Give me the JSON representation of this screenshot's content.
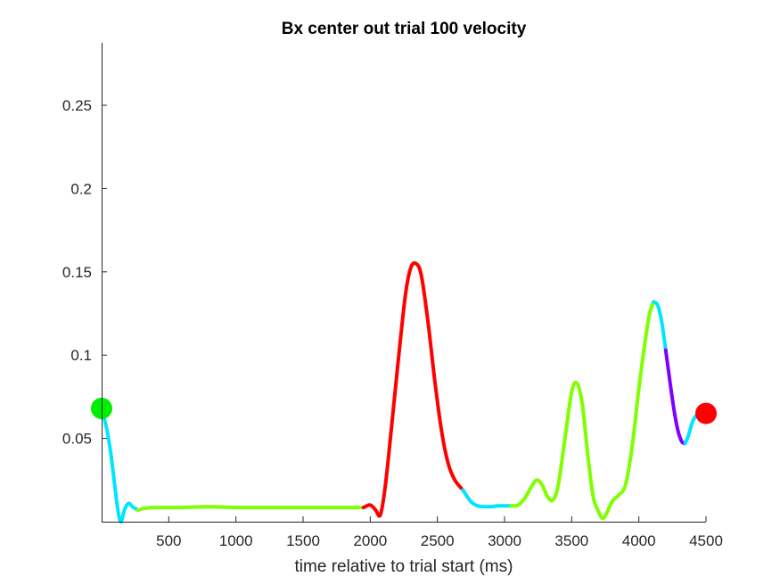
{
  "chart_data": {
    "type": "line",
    "title": "Bx  center out trial 100 velocity",
    "xlabel": "time relative to trial start (ms)",
    "ylabel": "",
    "xlim": [
      0,
      4500
    ],
    "ylim": [
      0,
      0.2875
    ],
    "x_ticks": [
      500,
      1000,
      1500,
      2000,
      2500,
      3000,
      3500,
      4000,
      4500
    ],
    "y_ticks": [
      0.05,
      0.1,
      0.15,
      0.2,
      0.25
    ],
    "x_tick_labels": [
      "500",
      "1000",
      "1500",
      "2000",
      "2500",
      "3000",
      "3500",
      "4000",
      "4500"
    ],
    "y_tick_labels": [
      "0.05",
      "0.1",
      "0.15",
      "0.2",
      "0.25"
    ],
    "grid": false,
    "box": false,
    "series": [
      {
        "color": "#00e5ff",
        "points": [
          [
            0,
            0.068
          ],
          [
            40,
            0.055
          ],
          [
            70,
            0.04
          ],
          [
            100,
            0.02
          ],
          [
            125,
            0.005
          ],
          [
            145,
            0.0
          ],
          [
            170,
            0.007
          ],
          [
            200,
            0.011
          ],
          [
            230,
            0.009
          ],
          [
            270,
            0.007
          ]
        ]
      },
      {
        "color": "#7fff00",
        "points": [
          [
            270,
            0.007
          ],
          [
            320,
            0.008
          ],
          [
            400,
            0.0085
          ],
          [
            600,
            0.0085
          ],
          [
            800,
            0.009
          ],
          [
            1000,
            0.0085
          ],
          [
            1200,
            0.0085
          ],
          [
            1500,
            0.0085
          ],
          [
            1700,
            0.0085
          ],
          [
            1880,
            0.0085
          ],
          [
            1950,
            0.0085
          ]
        ]
      },
      {
        "color": "#ff0000",
        "points": [
          [
            1950,
            0.0085
          ],
          [
            2000,
            0.01
          ],
          [
            2040,
            0.007
          ],
          [
            2075,
            0.004
          ],
          [
            2110,
            0.02
          ],
          [
            2150,
            0.05
          ],
          [
            2200,
            0.09
          ],
          [
            2260,
            0.135
          ],
          [
            2300,
            0.152
          ],
          [
            2340,
            0.155
          ],
          [
            2380,
            0.148
          ],
          [
            2430,
            0.12
          ],
          [
            2480,
            0.085
          ],
          [
            2530,
            0.055
          ],
          [
            2580,
            0.035
          ],
          [
            2630,
            0.025
          ],
          [
            2690,
            0.019
          ]
        ]
      },
      {
        "color": "#00e5ff",
        "points": [
          [
            2690,
            0.019
          ],
          [
            2750,
            0.012
          ],
          [
            2800,
            0.0095
          ],
          [
            2850,
            0.009
          ],
          [
            2900,
            0.009
          ],
          [
            2950,
            0.0095
          ],
          [
            3000,
            0.0095
          ],
          [
            3050,
            0.0095
          ]
        ]
      },
      {
        "color": "#7fff00",
        "points": [
          [
            3050,
            0.0095
          ],
          [
            3100,
            0.01
          ],
          [
            3150,
            0.014
          ],
          [
            3200,
            0.021
          ],
          [
            3240,
            0.025
          ],
          [
            3280,
            0.022
          ],
          [
            3320,
            0.015
          ],
          [
            3360,
            0.013
          ],
          [
            3400,
            0.022
          ],
          [
            3450,
            0.05
          ],
          [
            3500,
            0.078
          ],
          [
            3540,
            0.083
          ],
          [
            3580,
            0.07
          ],
          [
            3620,
            0.04
          ],
          [
            3660,
            0.015
          ],
          [
            3700,
            0.006
          ],
          [
            3730,
            0.002
          ],
          [
            3760,
            0.005
          ],
          [
            3800,
            0.012
          ],
          [
            3850,
            0.016
          ],
          [
            3900,
            0.022
          ],
          [
            3950,
            0.045
          ],
          [
            4000,
            0.08
          ],
          [
            4050,
            0.11
          ],
          [
            4080,
            0.125
          ],
          [
            4110,
            0.132
          ]
        ]
      },
      {
        "color": "#00e5ff",
        "points": [
          [
            4110,
            0.132
          ],
          [
            4140,
            0.13
          ],
          [
            4170,
            0.12
          ],
          [
            4200,
            0.103
          ]
        ]
      },
      {
        "color": "#8000ff",
        "points": [
          [
            4200,
            0.103
          ],
          [
            4230,
            0.085
          ],
          [
            4260,
            0.068
          ],
          [
            4290,
            0.055
          ],
          [
            4320,
            0.048
          ],
          [
            4345,
            0.047
          ]
        ]
      },
      {
        "color": "#00e5ff",
        "points": [
          [
            4345,
            0.047
          ],
          [
            4370,
            0.052
          ],
          [
            4400,
            0.06
          ],
          [
            4430,
            0.064
          ],
          [
            4460,
            0.065
          ]
        ]
      }
    ],
    "markers": [
      {
        "x": 0,
        "y": 0.068,
        "color": "#00ee00"
      },
      {
        "x": 4500,
        "y": 0.065,
        "color": "#ff0000"
      }
    ]
  }
}
